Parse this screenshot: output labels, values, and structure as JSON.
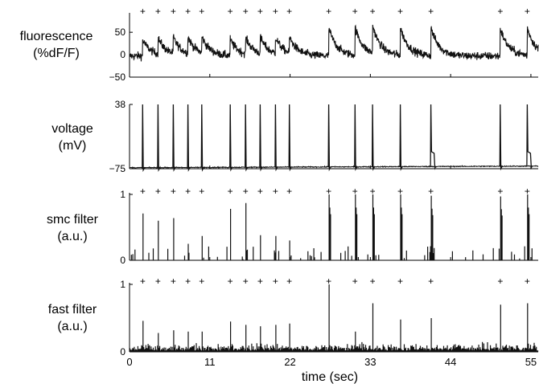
{
  "chart_data": {
    "type": "line",
    "x_axis": {
      "label": "time (sec)",
      "range": [
        0,
        56
      ],
      "ticks": [
        0,
        11,
        22,
        33,
        44,
        55
      ],
      "tick_labels": [
        "0",
        "11",
        "22",
        "33",
        "44",
        "55"
      ]
    },
    "spike_times": [
      1.8,
      3.9,
      6.0,
      8.0,
      9.9,
      13.8,
      15.9,
      17.9,
      20.0,
      21.9,
      27.3,
      30.9,
      33.3,
      37.1,
      41.3,
      50.8,
      54.5
    ],
    "panels": [
      {
        "id": "fluorescence",
        "ylabel": [
          "fluorescence",
          "(%dF/F)"
        ],
        "ylim": [
          -50,
          70
        ],
        "ticks": [
          50,
          0,
          -50
        ],
        "tick_labels": [
          "50",
          "0",
          "−50"
        ],
        "show_markers": true,
        "series": [
          {
            "name": "",
            "kind": "calcium",
            "baseline": -3,
            "noise": 6.5
          }
        ]
      },
      {
        "id": "voltage",
        "ylabel": [
          "voltage",
          "(mV)"
        ],
        "ylim": [
          -75,
          38
        ],
        "ticks": [
          38,
          -75
        ],
        "tick_labels": [
          "38",
          "−75"
        ],
        "show_markers": false,
        "series": [
          {
            "name": "",
            "kind": "voltage",
            "baseline": -72,
            "peak": 38
          }
        ]
      },
      {
        "id": "smc",
        "ylabel": [
          "smc filter",
          "(a.u.)"
        ],
        "ylim": [
          0,
          1
        ],
        "ticks": [
          1,
          0
        ],
        "tick_labels": [
          "1",
          "0"
        ],
        "show_markers": true,
        "series": [
          {
            "name": "",
            "kind": "smc",
            "peaks": [
              0.71,
              0.6,
              0.64,
              0.25,
              0.37,
              0.78,
              0.87,
              0.38,
              0.37,
              0.3,
              1.0,
              1.0,
              1.0,
              1.0,
              0.98,
              0.97,
              1.0
            ]
          }
        ]
      },
      {
        "id": "fast",
        "ylabel": [
          "fast filter",
          "(a.u.)"
        ],
        "ylim": [
          0,
          1
        ],
        "ticks": [
          1,
          0
        ],
        "tick_labels": [
          "1",
          "0"
        ],
        "show_markers": true,
        "series": [
          {
            "name": "",
            "kind": "fast",
            "peaks": [
              0.46,
              0.28,
              0.32,
              0.3,
              0.3,
              0.45,
              0.4,
              0.38,
              0.4,
              0.42,
              1.0,
              0.3,
              0.72,
              0.48,
              0.5,
              0.7,
              0.72
            ]
          }
        ]
      }
    ],
    "colors": {
      "trace": "#111111",
      "markers": "#888888",
      "axes": "#000000"
    }
  }
}
